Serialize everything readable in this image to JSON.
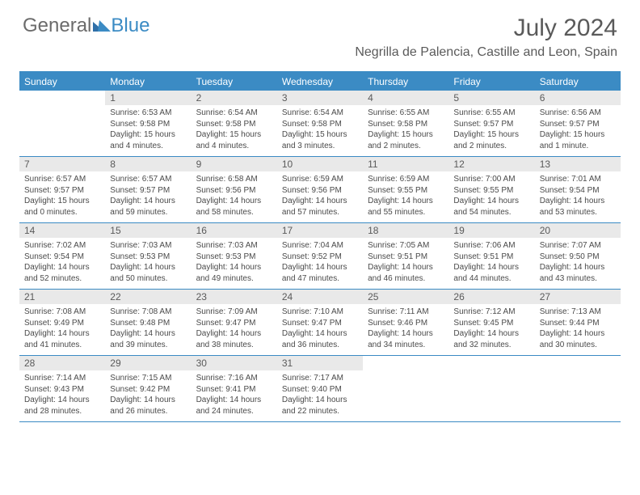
{
  "brand": {
    "part1": "General",
    "part2": "Blue"
  },
  "colors": {
    "accent": "#3b8bc4",
    "header_band": "#e9e9e9",
    "text_muted": "#5a5a5a",
    "text_body": "#4a4a4a",
    "background": "#ffffff"
  },
  "typography": {
    "title_fontsize": 30,
    "location_fontsize": 16,
    "dow_fontsize": 12,
    "daynum_fontsize": 12,
    "body_fontsize": 10
  },
  "title": "July 2024",
  "location": "Negrilla de Palencia, Castille and Leon, Spain",
  "days_of_week": [
    "Sunday",
    "Monday",
    "Tuesday",
    "Wednesday",
    "Thursday",
    "Friday",
    "Saturday"
  ],
  "weeks": [
    [
      {
        "num": "",
        "sunrise": "",
        "sunset": "",
        "daylight": ""
      },
      {
        "num": "1",
        "sunrise": "Sunrise: 6:53 AM",
        "sunset": "Sunset: 9:58 PM",
        "daylight": "Daylight: 15 hours and 4 minutes."
      },
      {
        "num": "2",
        "sunrise": "Sunrise: 6:54 AM",
        "sunset": "Sunset: 9:58 PM",
        "daylight": "Daylight: 15 hours and 4 minutes."
      },
      {
        "num": "3",
        "sunrise": "Sunrise: 6:54 AM",
        "sunset": "Sunset: 9:58 PM",
        "daylight": "Daylight: 15 hours and 3 minutes."
      },
      {
        "num": "4",
        "sunrise": "Sunrise: 6:55 AM",
        "sunset": "Sunset: 9:58 PM",
        "daylight": "Daylight: 15 hours and 2 minutes."
      },
      {
        "num": "5",
        "sunrise": "Sunrise: 6:55 AM",
        "sunset": "Sunset: 9:57 PM",
        "daylight": "Daylight: 15 hours and 2 minutes."
      },
      {
        "num": "6",
        "sunrise": "Sunrise: 6:56 AM",
        "sunset": "Sunset: 9:57 PM",
        "daylight": "Daylight: 15 hours and 1 minute."
      }
    ],
    [
      {
        "num": "7",
        "sunrise": "Sunrise: 6:57 AM",
        "sunset": "Sunset: 9:57 PM",
        "daylight": "Daylight: 15 hours and 0 minutes."
      },
      {
        "num": "8",
        "sunrise": "Sunrise: 6:57 AM",
        "sunset": "Sunset: 9:57 PM",
        "daylight": "Daylight: 14 hours and 59 minutes."
      },
      {
        "num": "9",
        "sunrise": "Sunrise: 6:58 AM",
        "sunset": "Sunset: 9:56 PM",
        "daylight": "Daylight: 14 hours and 58 minutes."
      },
      {
        "num": "10",
        "sunrise": "Sunrise: 6:59 AM",
        "sunset": "Sunset: 9:56 PM",
        "daylight": "Daylight: 14 hours and 57 minutes."
      },
      {
        "num": "11",
        "sunrise": "Sunrise: 6:59 AM",
        "sunset": "Sunset: 9:55 PM",
        "daylight": "Daylight: 14 hours and 55 minutes."
      },
      {
        "num": "12",
        "sunrise": "Sunrise: 7:00 AM",
        "sunset": "Sunset: 9:55 PM",
        "daylight": "Daylight: 14 hours and 54 minutes."
      },
      {
        "num": "13",
        "sunrise": "Sunrise: 7:01 AM",
        "sunset": "Sunset: 9:54 PM",
        "daylight": "Daylight: 14 hours and 53 minutes."
      }
    ],
    [
      {
        "num": "14",
        "sunrise": "Sunrise: 7:02 AM",
        "sunset": "Sunset: 9:54 PM",
        "daylight": "Daylight: 14 hours and 52 minutes."
      },
      {
        "num": "15",
        "sunrise": "Sunrise: 7:03 AM",
        "sunset": "Sunset: 9:53 PM",
        "daylight": "Daylight: 14 hours and 50 minutes."
      },
      {
        "num": "16",
        "sunrise": "Sunrise: 7:03 AM",
        "sunset": "Sunset: 9:53 PM",
        "daylight": "Daylight: 14 hours and 49 minutes."
      },
      {
        "num": "17",
        "sunrise": "Sunrise: 7:04 AM",
        "sunset": "Sunset: 9:52 PM",
        "daylight": "Daylight: 14 hours and 47 minutes."
      },
      {
        "num": "18",
        "sunrise": "Sunrise: 7:05 AM",
        "sunset": "Sunset: 9:51 PM",
        "daylight": "Daylight: 14 hours and 46 minutes."
      },
      {
        "num": "19",
        "sunrise": "Sunrise: 7:06 AM",
        "sunset": "Sunset: 9:51 PM",
        "daylight": "Daylight: 14 hours and 44 minutes."
      },
      {
        "num": "20",
        "sunrise": "Sunrise: 7:07 AM",
        "sunset": "Sunset: 9:50 PM",
        "daylight": "Daylight: 14 hours and 43 minutes."
      }
    ],
    [
      {
        "num": "21",
        "sunrise": "Sunrise: 7:08 AM",
        "sunset": "Sunset: 9:49 PM",
        "daylight": "Daylight: 14 hours and 41 minutes."
      },
      {
        "num": "22",
        "sunrise": "Sunrise: 7:08 AM",
        "sunset": "Sunset: 9:48 PM",
        "daylight": "Daylight: 14 hours and 39 minutes."
      },
      {
        "num": "23",
        "sunrise": "Sunrise: 7:09 AM",
        "sunset": "Sunset: 9:47 PM",
        "daylight": "Daylight: 14 hours and 38 minutes."
      },
      {
        "num": "24",
        "sunrise": "Sunrise: 7:10 AM",
        "sunset": "Sunset: 9:47 PM",
        "daylight": "Daylight: 14 hours and 36 minutes."
      },
      {
        "num": "25",
        "sunrise": "Sunrise: 7:11 AM",
        "sunset": "Sunset: 9:46 PM",
        "daylight": "Daylight: 14 hours and 34 minutes."
      },
      {
        "num": "26",
        "sunrise": "Sunrise: 7:12 AM",
        "sunset": "Sunset: 9:45 PM",
        "daylight": "Daylight: 14 hours and 32 minutes."
      },
      {
        "num": "27",
        "sunrise": "Sunrise: 7:13 AM",
        "sunset": "Sunset: 9:44 PM",
        "daylight": "Daylight: 14 hours and 30 minutes."
      }
    ],
    [
      {
        "num": "28",
        "sunrise": "Sunrise: 7:14 AM",
        "sunset": "Sunset: 9:43 PM",
        "daylight": "Daylight: 14 hours and 28 minutes."
      },
      {
        "num": "29",
        "sunrise": "Sunrise: 7:15 AM",
        "sunset": "Sunset: 9:42 PM",
        "daylight": "Daylight: 14 hours and 26 minutes."
      },
      {
        "num": "30",
        "sunrise": "Sunrise: 7:16 AM",
        "sunset": "Sunset: 9:41 PM",
        "daylight": "Daylight: 14 hours and 24 minutes."
      },
      {
        "num": "31",
        "sunrise": "Sunrise: 7:17 AM",
        "sunset": "Sunset: 9:40 PM",
        "daylight": "Daylight: 14 hours and 22 minutes."
      },
      {
        "num": "",
        "sunrise": "",
        "sunset": "",
        "daylight": ""
      },
      {
        "num": "",
        "sunrise": "",
        "sunset": "",
        "daylight": ""
      },
      {
        "num": "",
        "sunrise": "",
        "sunset": "",
        "daylight": ""
      }
    ]
  ]
}
